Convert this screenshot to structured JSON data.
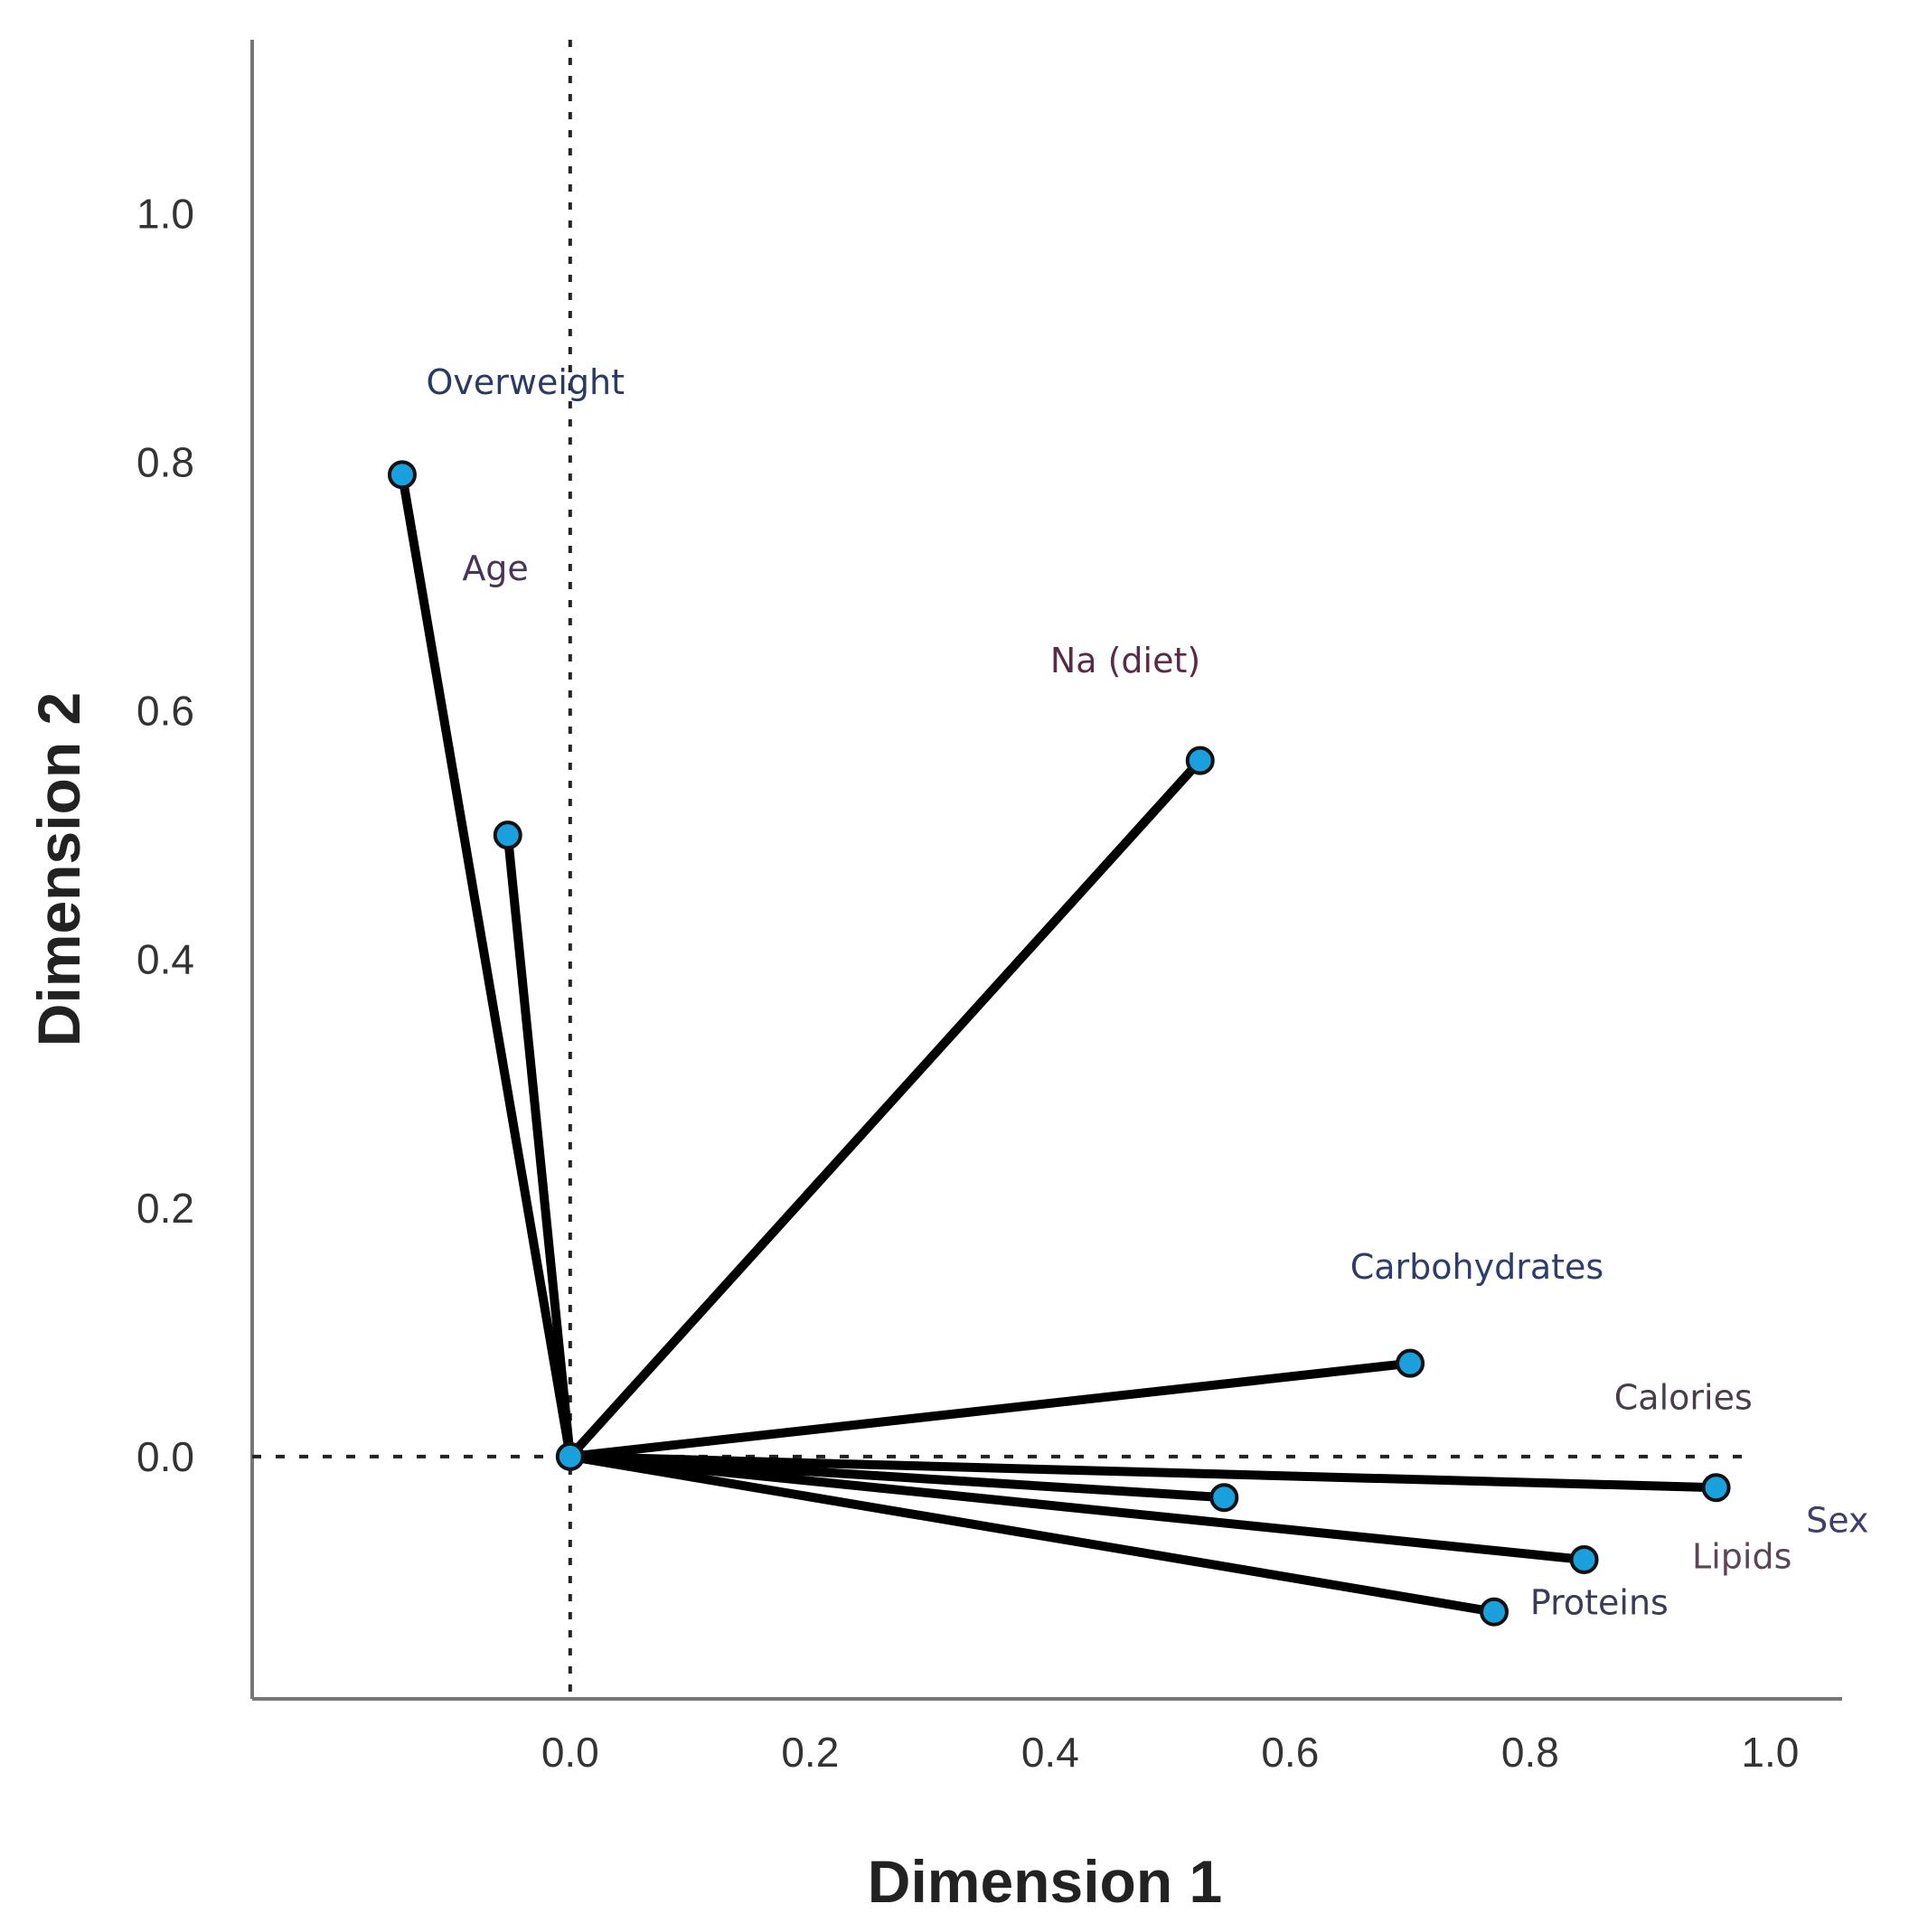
{
  "chart_data": {
    "type": "scatter",
    "subtype": "loading-vectors",
    "title": "",
    "xlabel": "Dimension 1",
    "ylabel": "Dimension 2",
    "xlim": [
      -0.265,
      1.06
    ],
    "ylim": [
      -0.195,
      1.14
    ],
    "xticks": [
      0.0,
      0.2,
      0.4,
      0.6,
      0.8,
      1.0
    ],
    "xtick_labels": [
      "0.0",
      "0.2",
      "0.4",
      "0.6",
      "0.8",
      "1.0"
    ],
    "yticks": [
      0.0,
      0.2,
      0.4,
      0.6,
      0.8,
      1.0
    ],
    "ytick_labels": [
      "0.0",
      "0.2",
      "0.4",
      "0.6",
      "0.8",
      "1.0"
    ],
    "reference_lines": {
      "x": 0,
      "y": 0,
      "style": "dotted"
    },
    "origin": [
      0,
      0
    ],
    "series": [
      {
        "name": "Overweight",
        "x": -0.14,
        "y": 0.79,
        "label_pos": [
          -0.12,
          0.855
        ]
      },
      {
        "name": "Age",
        "x": -0.052,
        "y": 0.5,
        "label_pos": [
          -0.09,
          0.705
        ]
      },
      {
        "name": "Na (diet)",
        "x": 0.525,
        "y": 0.56,
        "label_pos": [
          0.4,
          0.631
        ]
      },
      {
        "name": "Carbohydrates",
        "x": 0.7,
        "y": 0.075,
        "label_pos": [
          0.65,
          0.143
        ]
      },
      {
        "name": "Calories",
        "x": 0.955,
        "y": -0.025,
        "label_pos": [
          0.87,
          0.038
        ]
      },
      {
        "name": "Sex",
        "x": 0.545,
        "y": -0.033,
        "label_pos": [
          1.03,
          -0.061
        ]
      },
      {
        "name": "Lipids",
        "x": 0.845,
        "y": -0.083,
        "label_pos": [
          0.935,
          -0.09
        ]
      },
      {
        "name": "Proteins",
        "x": 0.77,
        "y": -0.125,
        "label_pos": [
          0.8,
          -0.127
        ]
      }
    ],
    "label_colors": [
      "#2a3a66",
      "#4a3358",
      "#5a2a4a",
      "#2e3e6a",
      "#4a3c48",
      "#3e3f6e",
      "#5a4658",
      "#3a3a5a"
    ],
    "point_color": "#1aa0dc",
    "vector_color": "#000000"
  }
}
